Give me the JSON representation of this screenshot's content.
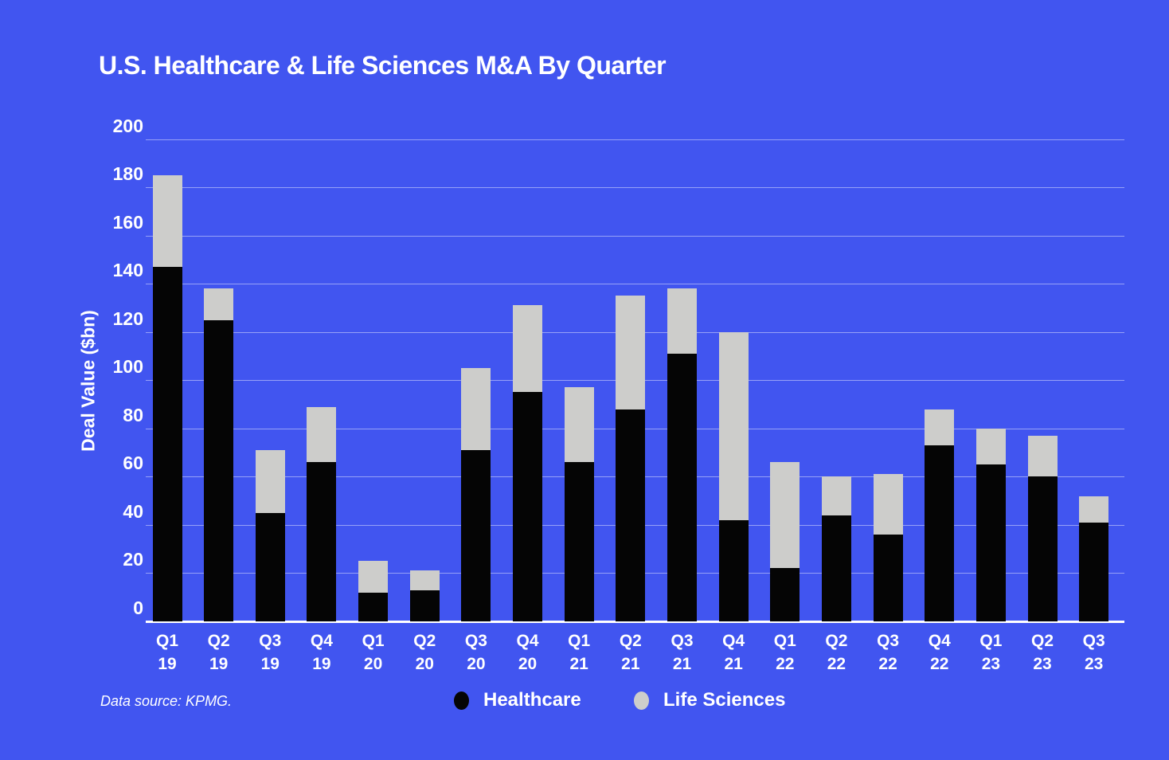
{
  "page": {
    "background_color": "#4155F0",
    "text_color": "#FFFFFF"
  },
  "header": {
    "title": "U.S. Healthcare & Life Sciences M&A By Quarter"
  },
  "footer": {
    "source_note": "Data source: KPMG."
  },
  "legend": {
    "position": "bottom",
    "items": [
      {
        "label": "Healthcare",
        "color": "#050505"
      },
      {
        "label": "Life Sciences",
        "color": "#CDCDCB"
      }
    ]
  },
  "chart_data": {
    "type": "bar",
    "stacked": true,
    "title": "U.S. Healthcare & Life Sciences M&A By Quarter",
    "xlabel": "",
    "ylabel": "Deal Value ($bn)",
    "ylim": [
      0,
      200
    ],
    "yticks": [
      0,
      20,
      40,
      60,
      80,
      100,
      120,
      140,
      160,
      180,
      200
    ],
    "grid": true,
    "grid_color": "rgba(255,255,255,0.45)",
    "axis_color": "#FFFFFF",
    "categories": [
      {
        "quarter": "Q1",
        "year": "19"
      },
      {
        "quarter": "Q2",
        "year": "19"
      },
      {
        "quarter": "Q3",
        "year": "19"
      },
      {
        "quarter": "Q4",
        "year": "19"
      },
      {
        "quarter": "Q1",
        "year": "20"
      },
      {
        "quarter": "Q2",
        "year": "20"
      },
      {
        "quarter": "Q3",
        "year": "20"
      },
      {
        "quarter": "Q4",
        "year": "20"
      },
      {
        "quarter": "Q1",
        "year": "21"
      },
      {
        "quarter": "Q2",
        "year": "21"
      },
      {
        "quarter": "Q3",
        "year": "21"
      },
      {
        "quarter": "Q4",
        "year": "21"
      },
      {
        "quarter": "Q1",
        "year": "22"
      },
      {
        "quarter": "Q2",
        "year": "22"
      },
      {
        "quarter": "Q3",
        "year": "22"
      },
      {
        "quarter": "Q4",
        "year": "22"
      },
      {
        "quarter": "Q1",
        "year": "23"
      },
      {
        "quarter": "Q2",
        "year": "23"
      },
      {
        "quarter": "Q3",
        "year": "23"
      }
    ],
    "series": [
      {
        "name": "Healthcare",
        "color": "#050505",
        "values": [
          147,
          125,
          45,
          66,
          12,
          13,
          71,
          95,
          66,
          88,
          111,
          42,
          22,
          44,
          36,
          73,
          65,
          60,
          41
        ]
      },
      {
        "name": "Life Sciences",
        "color": "#CDCDCB",
        "values": [
          38,
          13,
          26,
          23,
          13,
          8,
          34,
          36,
          31,
          47,
          27,
          78,
          44,
          16,
          25,
          15,
          15,
          17,
          11
        ]
      }
    ]
  }
}
